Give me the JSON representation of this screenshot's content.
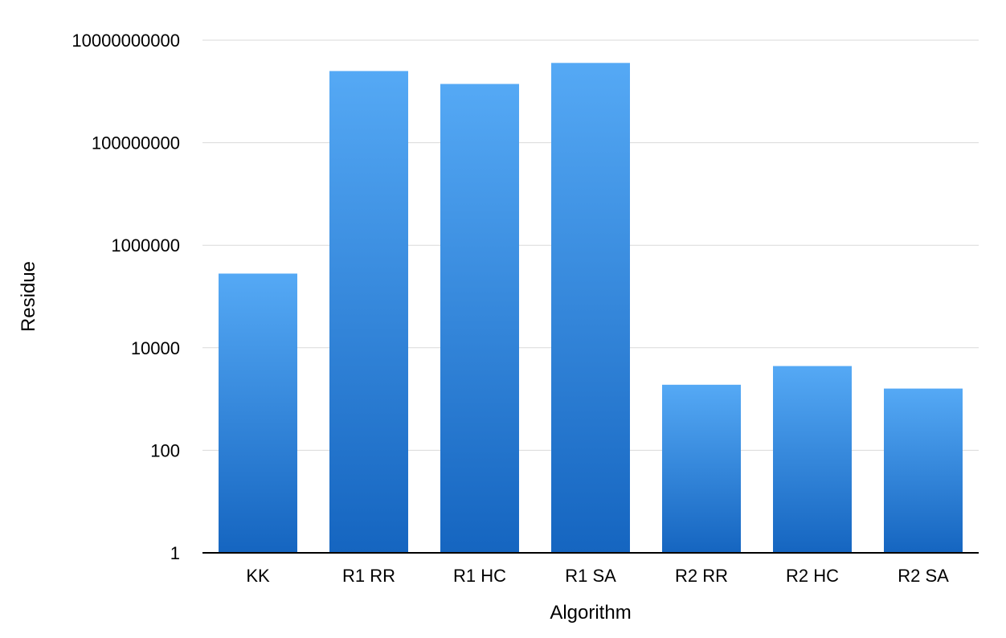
{
  "chart_data": {
    "type": "bar",
    "xlabel": "Algorithm",
    "ylabel": "Residue",
    "yscale": "log",
    "ylim": [
      1,
      10000000000
    ],
    "yticks": [
      1,
      100,
      10000,
      1000000,
      100000000,
      10000000000
    ],
    "ytick_labels": [
      "1",
      "100",
      "10000",
      "1000000",
      "100000000",
      "10000000000"
    ],
    "categories": [
      "KK",
      "R1 RR",
      "R1 HC",
      "R1 SA",
      "R2 RR",
      "R2 HC",
      "R2 SA"
    ],
    "values": [
      280000,
      2500000000,
      1400000000,
      3600000000,
      1900,
      4400,
      1600
    ],
    "grid": true,
    "legend": "none",
    "bar_color_top": "#55a9f5",
    "bar_color_bottom": "#1565c0"
  }
}
